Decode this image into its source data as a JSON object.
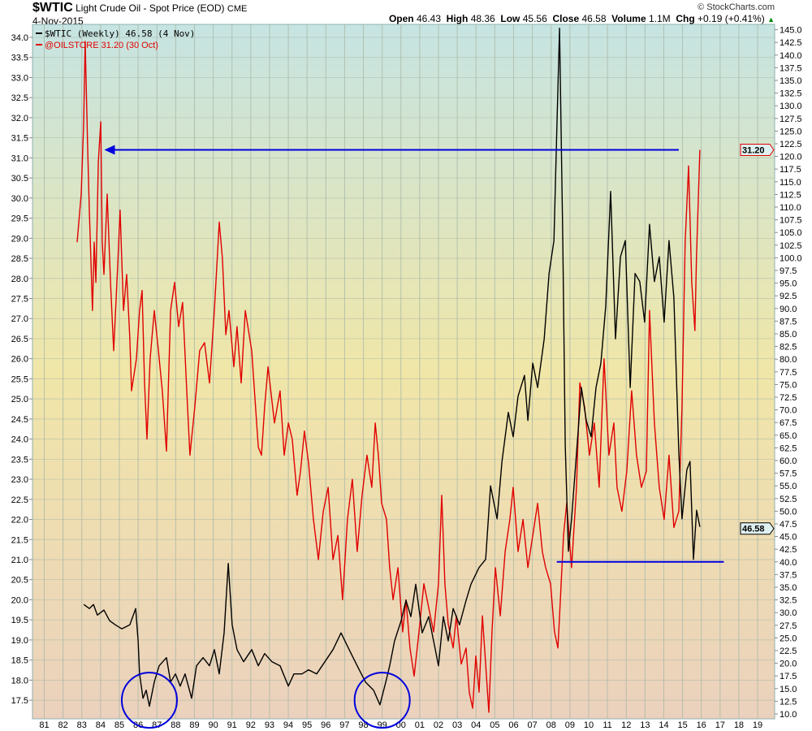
{
  "header": {
    "symbol": "$WTIC",
    "name": "Light Crude Oil - Spot Price (EOD)",
    "exchange": "CME",
    "date": "4-Nov-2015",
    "copyright": "© StockCharts.com",
    "open_label": "Open",
    "open": "46.43",
    "high_label": "High",
    "high": "48.36",
    "low_label": "Low",
    "low": "45.56",
    "close_label": "Close",
    "close": "46.58",
    "volume_label": "Volume",
    "volume": "1.1M",
    "chg_label": "Chg",
    "chg": "+0.19 (+0.41%)"
  },
  "legend": {
    "wtic": "$WTIC (Weekly) 46.58 (4 Nov)",
    "oilstore": "@OILSTORE 31.20 (30 Oct)"
  },
  "colors": {
    "wtic": "#000000",
    "oilstore": "#e00000",
    "annotation": "#0000dd",
    "grid": "#a9b8a8"
  },
  "chart_data": {
    "type": "line",
    "title": "$WTIC Light Crude Oil - Spot Price (EOD)",
    "xlim": [
      1981,
      2019.9
    ],
    "x_ticks": [
      "81",
      "82",
      "83",
      "84",
      "85",
      "86",
      "87",
      "88",
      "89",
      "90",
      "91",
      "92",
      "93",
      "94",
      "95",
      "96",
      "97",
      "98",
      "99",
      "00",
      "01",
      "02",
      "03",
      "04",
      "05",
      "06",
      "07",
      "08",
      "09",
      "10",
      "11",
      "12",
      "13",
      "14",
      "15",
      "16",
      "17",
      "18",
      "19"
    ],
    "left_axis": {
      "series": "@OILSTORE",
      "ylim": [
        17.5,
        34.0
      ],
      "step": 0.5
    },
    "right_axis": {
      "series": "$WTIC",
      "ylim": [
        10.0,
        145.0
      ],
      "step": 2.5
    },
    "last_labels": {
      "oilstore": "31.20",
      "wtic": "46.58"
    },
    "series": [
      {
        "name": "@OILSTORE",
        "axis": "left",
        "points": [
          [
            1982.75,
            28.9
          ],
          [
            1982.97,
            30.1
          ],
          [
            1983.1,
            31.9
          ],
          [
            1983.18,
            33.9
          ],
          [
            1983.31,
            31.3
          ],
          [
            1983.4,
            29.7
          ],
          [
            1983.57,
            27.2
          ],
          [
            1983.66,
            28.9
          ],
          [
            1983.75,
            27.9
          ],
          [
            1983.88,
            30.9
          ],
          [
            1984.01,
            31.9
          ],
          [
            1984.09,
            28.9
          ],
          [
            1984.18,
            28.1
          ],
          [
            1984.35,
            30.1
          ],
          [
            1984.53,
            27.9
          ],
          [
            1984.7,
            26.2
          ],
          [
            1984.91,
            28.3
          ],
          [
            1985.04,
            29.7
          ],
          [
            1985.22,
            27.2
          ],
          [
            1985.39,
            28.1
          ],
          [
            1985.56,
            26.5
          ],
          [
            1985.65,
            25.2
          ],
          [
            1985.91,
            26.0
          ],
          [
            1986.08,
            27.2
          ],
          [
            1986.21,
            27.7
          ],
          [
            1986.34,
            25.4
          ],
          [
            1986.47,
            24.0
          ],
          [
            1986.64,
            26.0
          ],
          [
            1986.86,
            27.2
          ],
          [
            1987.08,
            26.2
          ],
          [
            1987.29,
            25.2
          ],
          [
            1987.51,
            23.7
          ],
          [
            1987.73,
            27.2
          ],
          [
            1987.94,
            27.9
          ],
          [
            1988.16,
            26.8
          ],
          [
            1988.37,
            27.4
          ],
          [
            1988.59,
            25.2
          ],
          [
            1988.76,
            23.6
          ],
          [
            1989.02,
            24.8
          ],
          [
            1989.28,
            26.2
          ],
          [
            1989.54,
            26.4
          ],
          [
            1989.8,
            25.4
          ],
          [
            1990.06,
            27.2
          ],
          [
            1990.32,
            29.4
          ],
          [
            1990.49,
            28.5
          ],
          [
            1990.67,
            26.6
          ],
          [
            1990.84,
            27.2
          ],
          [
            1991.1,
            25.8
          ],
          [
            1991.27,
            26.8
          ],
          [
            1991.49,
            25.4
          ],
          [
            1991.71,
            27.2
          ],
          [
            1992.05,
            26.2
          ],
          [
            1992.4,
            23.8
          ],
          [
            1992.57,
            23.6
          ],
          [
            1992.74,
            24.8
          ],
          [
            1992.92,
            25.8
          ],
          [
            1993.26,
            24.4
          ],
          [
            1993.56,
            25.2
          ],
          [
            1993.78,
            23.6
          ],
          [
            1994.0,
            24.4
          ],
          [
            1994.21,
            24.0
          ],
          [
            1994.47,
            22.6
          ],
          [
            1994.65,
            23.2
          ],
          [
            1994.86,
            24.2
          ],
          [
            1995.08,
            23.4
          ],
          [
            1995.34,
            22.0
          ],
          [
            1995.6,
            21.0
          ],
          [
            1995.86,
            22.2
          ],
          [
            1996.12,
            22.8
          ],
          [
            1996.38,
            21.0
          ],
          [
            1996.64,
            21.6
          ],
          [
            1996.89,
            20.0
          ],
          [
            1997.15,
            22.0
          ],
          [
            1997.41,
            23.0
          ],
          [
            1997.67,
            21.2
          ],
          [
            1997.93,
            22.6
          ],
          [
            1998.19,
            23.6
          ],
          [
            1998.45,
            22.8
          ],
          [
            1998.63,
            24.4
          ],
          [
            1998.8,
            23.6
          ],
          [
            1998.97,
            22.4
          ],
          [
            1999.23,
            22.0
          ],
          [
            1999.4,
            20.8
          ],
          [
            1999.58,
            20.0
          ],
          [
            1999.84,
            20.8
          ],
          [
            2000.09,
            19.2
          ],
          [
            2000.27,
            20.0
          ],
          [
            2000.48,
            18.8
          ],
          [
            2000.7,
            18.1
          ],
          [
            2000.96,
            19.2
          ],
          [
            2001.22,
            20.4
          ],
          [
            2001.48,
            19.8
          ],
          [
            2001.74,
            19.2
          ],
          [
            2002.0,
            20.4
          ],
          [
            2002.17,
            22.6
          ],
          [
            2002.34,
            20.4
          ],
          [
            2002.52,
            19.4
          ],
          [
            2002.78,
            18.8
          ],
          [
            2002.95,
            19.6
          ],
          [
            2003.21,
            18.4
          ],
          [
            2003.47,
            18.8
          ],
          [
            2003.64,
            17.7
          ],
          [
            2003.82,
            17.3
          ],
          [
            2003.99,
            18.6
          ],
          [
            2004.16,
            17.7
          ],
          [
            2004.34,
            19.6
          ],
          [
            2004.51,
            18.4
          ],
          [
            2004.68,
            17.2
          ],
          [
            2004.85,
            19.2
          ],
          [
            2005.03,
            20.8
          ],
          [
            2005.29,
            19.6
          ],
          [
            2005.55,
            21.2
          ],
          [
            2005.8,
            22.0
          ],
          [
            2005.98,
            22.8
          ],
          [
            2006.24,
            21.2
          ],
          [
            2006.5,
            22.0
          ],
          [
            2006.76,
            20.8
          ],
          [
            2007.02,
            21.6
          ],
          [
            2007.28,
            22.4
          ],
          [
            2007.53,
            21.2
          ],
          [
            2007.71,
            20.8
          ],
          [
            2007.97,
            20.4
          ],
          [
            2008.18,
            19.2
          ],
          [
            2008.36,
            18.8
          ],
          [
            2008.49,
            20.0
          ],
          [
            2008.66,
            21.6
          ],
          [
            2008.83,
            22.4
          ],
          [
            2009.09,
            20.8
          ],
          [
            2009.35,
            22.8
          ],
          [
            2009.53,
            25.4
          ],
          [
            2009.78,
            24.8
          ],
          [
            2010.04,
            23.6
          ],
          [
            2010.3,
            24.4
          ],
          [
            2010.56,
            22.8
          ],
          [
            2010.82,
            26.0
          ],
          [
            2011.08,
            23.6
          ],
          [
            2011.34,
            24.4
          ],
          [
            2011.51,
            22.8
          ],
          [
            2011.77,
            22.2
          ],
          [
            2012.03,
            23.2
          ],
          [
            2012.29,
            25.2
          ],
          [
            2012.55,
            23.6
          ],
          [
            2012.81,
            22.8
          ],
          [
            2013.07,
            23.2
          ],
          [
            2013.24,
            27.2
          ],
          [
            2013.5,
            24.4
          ],
          [
            2013.76,
            22.8
          ],
          [
            2014.02,
            22.0
          ],
          [
            2014.28,
            23.6
          ],
          [
            2014.54,
            21.8
          ],
          [
            2014.8,
            22.2
          ],
          [
            2014.97,
            24.8
          ],
          [
            2015.14,
            28.9
          ],
          [
            2015.32,
            30.8
          ],
          [
            2015.49,
            27.9
          ],
          [
            2015.66,
            26.7
          ],
          [
            2015.74,
            28.5
          ],
          [
            2015.92,
            31.2
          ]
        ]
      },
      {
        "name": "$WTIC",
        "axis": "right",
        "points": [
          [
            1983.1,
            31.6
          ],
          [
            1983.4,
            30.8
          ],
          [
            1983.62,
            31.6
          ],
          [
            1983.83,
            29.5
          ],
          [
            1984.18,
            30.5
          ],
          [
            1984.48,
            28.4
          ],
          [
            1984.78,
            27.6
          ],
          [
            1985.13,
            26.8
          ],
          [
            1985.56,
            27.6
          ],
          [
            1985.87,
            30.8
          ],
          [
            1986.0,
            24.4
          ],
          [
            1986.08,
            17.9
          ],
          [
            1986.26,
            13.1
          ],
          [
            1986.43,
            14.7
          ],
          [
            1986.6,
            11.5
          ],
          [
            1986.86,
            16.3
          ],
          [
            1987.12,
            19.5
          ],
          [
            1987.51,
            21.1
          ],
          [
            1987.73,
            16.3
          ],
          [
            1987.99,
            17.9
          ],
          [
            1988.24,
            15.5
          ],
          [
            1988.5,
            17.9
          ],
          [
            1988.85,
            13.1
          ],
          [
            1989.11,
            19.5
          ],
          [
            1989.46,
            21.1
          ],
          [
            1989.8,
            19.5
          ],
          [
            1990.06,
            22.7
          ],
          [
            1990.32,
            17.9
          ],
          [
            1990.58,
            26.0
          ],
          [
            1990.8,
            39.7
          ],
          [
            1991.01,
            27.6
          ],
          [
            1991.27,
            22.7
          ],
          [
            1991.62,
            20.3
          ],
          [
            1992.05,
            22.7
          ],
          [
            1992.4,
            19.5
          ],
          [
            1992.74,
            21.9
          ],
          [
            1993.13,
            20.3
          ],
          [
            1993.56,
            19.5
          ],
          [
            1994.0,
            15.5
          ],
          [
            1994.3,
            17.9
          ],
          [
            1994.73,
            17.9
          ],
          [
            1995.08,
            18.7
          ],
          [
            1995.51,
            17.9
          ],
          [
            1995.95,
            20.3
          ],
          [
            1996.38,
            22.7
          ],
          [
            1996.81,
            26.0
          ],
          [
            1997.24,
            22.7
          ],
          [
            1997.67,
            19.5
          ],
          [
            1998.11,
            16.3
          ],
          [
            1998.54,
            14.7
          ],
          [
            1998.88,
            11.8
          ],
          [
            1999.19,
            16.3
          ],
          [
            1999.4,
            19.5
          ],
          [
            1999.66,
            24.4
          ],
          [
            2000.01,
            28.4
          ],
          [
            2000.27,
            32.4
          ],
          [
            2000.53,
            29.2
          ],
          [
            2000.79,
            35.6
          ],
          [
            2001.13,
            26.0
          ],
          [
            2001.48,
            29.2
          ],
          [
            2001.83,
            22.7
          ],
          [
            2002.0,
            19.5
          ],
          [
            2002.26,
            29.2
          ],
          [
            2002.52,
            24.4
          ],
          [
            2002.78,
            30.8
          ],
          [
            2003.12,
            27.6
          ],
          [
            2003.47,
            32.4
          ],
          [
            2003.73,
            35.6
          ],
          [
            2004.16,
            38.9
          ],
          [
            2004.51,
            40.5
          ],
          [
            2004.77,
            55.0
          ],
          [
            2005.12,
            48.5
          ],
          [
            2005.38,
            59.8
          ],
          [
            2005.72,
            69.5
          ],
          [
            2005.98,
            64.7
          ],
          [
            2006.24,
            72.7
          ],
          [
            2006.58,
            76.8
          ],
          [
            2006.76,
            67.9
          ],
          [
            2007.02,
            79.2
          ],
          [
            2007.28,
            74.4
          ],
          [
            2007.63,
            84.0
          ],
          [
            2007.89,
            96.9
          ],
          [
            2008.15,
            103.4
          ],
          [
            2008.32,
            127.6
          ],
          [
            2008.45,
            145.3
          ],
          [
            2008.62,
            103.4
          ],
          [
            2008.75,
            63.1
          ],
          [
            2008.92,
            42.1
          ],
          [
            2009.09,
            48.5
          ],
          [
            2009.35,
            61.5
          ],
          [
            2009.61,
            74.4
          ],
          [
            2009.87,
            67.9
          ],
          [
            2010.13,
            64.7
          ],
          [
            2010.39,
            74.4
          ],
          [
            2010.65,
            79.2
          ],
          [
            2010.91,
            90.5
          ],
          [
            2011.17,
            113.1
          ],
          [
            2011.43,
            84.0
          ],
          [
            2011.69,
            100.2
          ],
          [
            2011.95,
            103.4
          ],
          [
            2012.21,
            74.4
          ],
          [
            2012.47,
            96.9
          ],
          [
            2012.72,
            95.3
          ],
          [
            2012.98,
            87.3
          ],
          [
            2013.24,
            106.6
          ],
          [
            2013.5,
            95.3
          ],
          [
            2013.76,
            100.2
          ],
          [
            2014.02,
            87.3
          ],
          [
            2014.28,
            103.4
          ],
          [
            2014.54,
            92.1
          ],
          [
            2014.8,
            61.5
          ],
          [
            2014.97,
            48.5
          ],
          [
            2015.23,
            58.2
          ],
          [
            2015.4,
            59.8
          ],
          [
            2015.58,
            40.5
          ],
          [
            2015.75,
            50.2
          ],
          [
            2015.92,
            46.9
          ]
        ]
      }
    ],
    "annotations": {
      "resistance_arrow": {
        "axis": "left",
        "value": 31.2,
        "from": 1984.2,
        "to": 2014.8
      },
      "support_line": {
        "axis": "right",
        "value": 40.0,
        "from": 2008.3,
        "to": 2017.2
      },
      "circles": [
        {
          "year": 1986.6,
          "value": 17.5
        },
        {
          "year": 1999.0,
          "value": 17.5
        }
      ]
    }
  }
}
